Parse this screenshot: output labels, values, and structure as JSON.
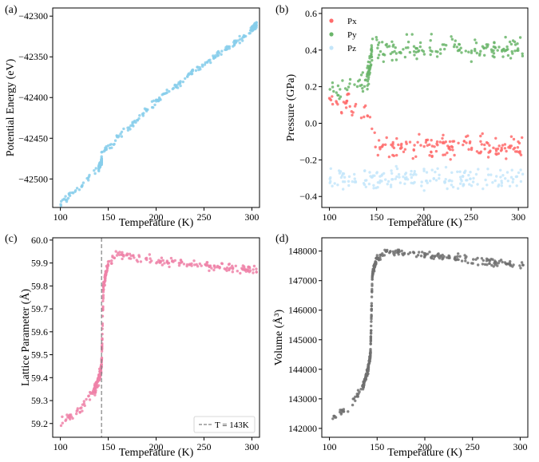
{
  "colors": {
    "a": "#87ceeb",
    "px": "#ff6b6b",
    "py": "#6ab56a",
    "pz": "#c4e6fa",
    "c": "#ee82a8",
    "d": "#707070",
    "dashed": "#808080"
  },
  "chart_data": [
    {
      "type": "scatter",
      "panel_label": "(a)",
      "xlabel": "Temperature (K)",
      "ylabel": "Potential Energy (eV)",
      "xlim": [
        92,
        308
      ],
      "ylim": [
        -42535,
        -42290
      ],
      "xticks": [
        100,
        150,
        200,
        250,
        300
      ],
      "yticks": [
        -42500,
        -42450,
        -42400,
        -42350,
        -42300
      ],
      "ytick_labels": [
        "−42500",
        "−42450",
        "−42400",
        "−42350",
        "−42300"
      ],
      "series": [
        {
          "x": [
            100,
            130,
            140,
            143,
            143,
            160,
            200,
            250,
            300,
            305
          ],
          "y": [
            -42530,
            -42500,
            -42486,
            -42478,
            -42468,
            -42450,
            -42405,
            -42358,
            -42318,
            -42308
          ],
          "spread": 4
        }
      ]
    },
    {
      "type": "scatter",
      "panel_label": "(b)",
      "xlabel": "Temperature (K)",
      "ylabel": "Pressure (GPa)",
      "xlim": [
        92,
        310
      ],
      "ylim": [
        -0.46,
        0.63
      ],
      "xticks": [
        100,
        150,
        200,
        250,
        300
      ],
      "yticks": [
        -0.4,
        -0.2,
        0.0,
        0.2,
        0.4,
        0.6
      ],
      "ytick_labels": [
        "−0.4",
        "−0.2",
        "0.0",
        "0.2",
        "0.4",
        "0.6"
      ],
      "legend": {
        "location": "top-left",
        "entries": [
          "Px",
          "Py",
          "Pz"
        ]
      },
      "series": [
        {
          "name": "Px",
          "x": [
            100,
            140,
            148,
            200,
            305
          ],
          "y": [
            0.12,
            0.07,
            -0.13,
            -0.13,
            -0.13
          ],
          "spread": 0.06
        },
        {
          "name": "Py",
          "x": [
            100,
            140,
            145,
            200,
            305
          ],
          "y": [
            0.17,
            0.22,
            0.4,
            0.41,
            0.41
          ],
          "spread": 0.06
        },
        {
          "name": "Pz",
          "x": [
            100,
            305
          ],
          "y": [
            -0.3,
            -0.3
          ],
          "spread": 0.055
        }
      ]
    },
    {
      "type": "scatter",
      "panel_label": "(c)",
      "xlabel": "Temperature (K)",
      "ylabel": "Lattice Parameter (Å)",
      "xlim": [
        92,
        308
      ],
      "ylim": [
        59.14,
        60.01
      ],
      "xticks": [
        100,
        150,
        200,
        250,
        300
      ],
      "yticks": [
        59.2,
        59.3,
        59.4,
        59.5,
        59.6,
        59.7,
        59.8,
        59.9,
        60.0
      ],
      "ytick_labels": [
        "59.2",
        "59.3",
        "59.4",
        "59.5",
        "59.6",
        "59.7",
        "59.8",
        "59.9",
        "60.0"
      ],
      "vline": {
        "x": 143,
        "label": "T = 143K"
      },
      "legend": {
        "location": "bottom-right",
        "entries": [
          "T = 143K"
        ]
      },
      "series": [
        {
          "x": [
            100,
            120,
            135,
            140,
            143,
            145,
            150,
            160,
            200,
            250,
            305
          ],
          "y": [
            59.2,
            59.26,
            59.34,
            59.39,
            59.45,
            59.8,
            59.9,
            59.94,
            59.91,
            59.89,
            59.87
          ],
          "spread": 0.02
        }
      ]
    },
    {
      "type": "scatter",
      "panel_label": "(d)",
      "xlabel": "Temperature (K)",
      "ylabel": "Volume (Å³)",
      "xlim": [
        92,
        308
      ],
      "ylim": [
        141700,
        148450
      ],
      "xticks": [
        100,
        150,
        200,
        250,
        300
      ],
      "yticks": [
        142000,
        143000,
        144000,
        145000,
        146000,
        147000,
        148000
      ],
      "ytick_labels": [
        "142000",
        "143000",
        "144000",
        "145000",
        "146000",
        "147000",
        "148000"
      ],
      "series": [
        {
          "x": [
            100,
            120,
            135,
            140,
            143,
            145,
            150,
            160,
            200,
            250,
            305
          ],
          "y": [
            142250,
            142700,
            143400,
            143900,
            144500,
            147200,
            147800,
            148000,
            147900,
            147700,
            147500
          ],
          "spread": 120
        }
      ]
    }
  ]
}
